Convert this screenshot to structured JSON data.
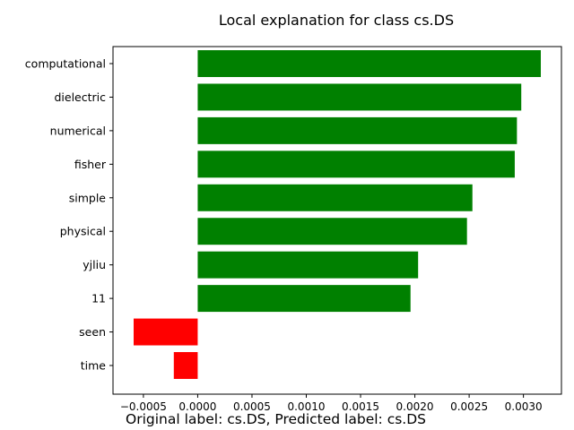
{
  "chart_data": {
    "type": "bar",
    "orientation": "horizontal",
    "title": "Local explanation for class cs.DS",
    "xlabel": "",
    "ylabel": "",
    "categories": [
      "computational",
      "dielectric",
      "numerical",
      "fisher",
      "simple",
      "physical",
      "yjliu",
      "11",
      "seen",
      "time"
    ],
    "values": [
      0.00316,
      0.00298,
      0.00294,
      0.00292,
      0.00253,
      0.00248,
      0.00203,
      0.00196,
      -0.00059,
      -0.00022
    ],
    "xlim": [
      -0.00078,
      0.00335
    ],
    "xticks": [
      -0.0005,
      0.0,
      0.0005,
      0.001,
      0.0015,
      0.002,
      0.0025,
      0.003
    ],
    "xtick_labels": [
      "−0.0005",
      "0.0000",
      "0.0005",
      "0.0010",
      "0.0015",
      "0.0020",
      "0.0025",
      "0.0030"
    ],
    "colors": {
      "positive": "#008000",
      "negative": "#ff0000"
    },
    "grid": false,
    "legend": "none"
  },
  "caption": "Original label: cs.DS, Predicted label: cs.DS"
}
